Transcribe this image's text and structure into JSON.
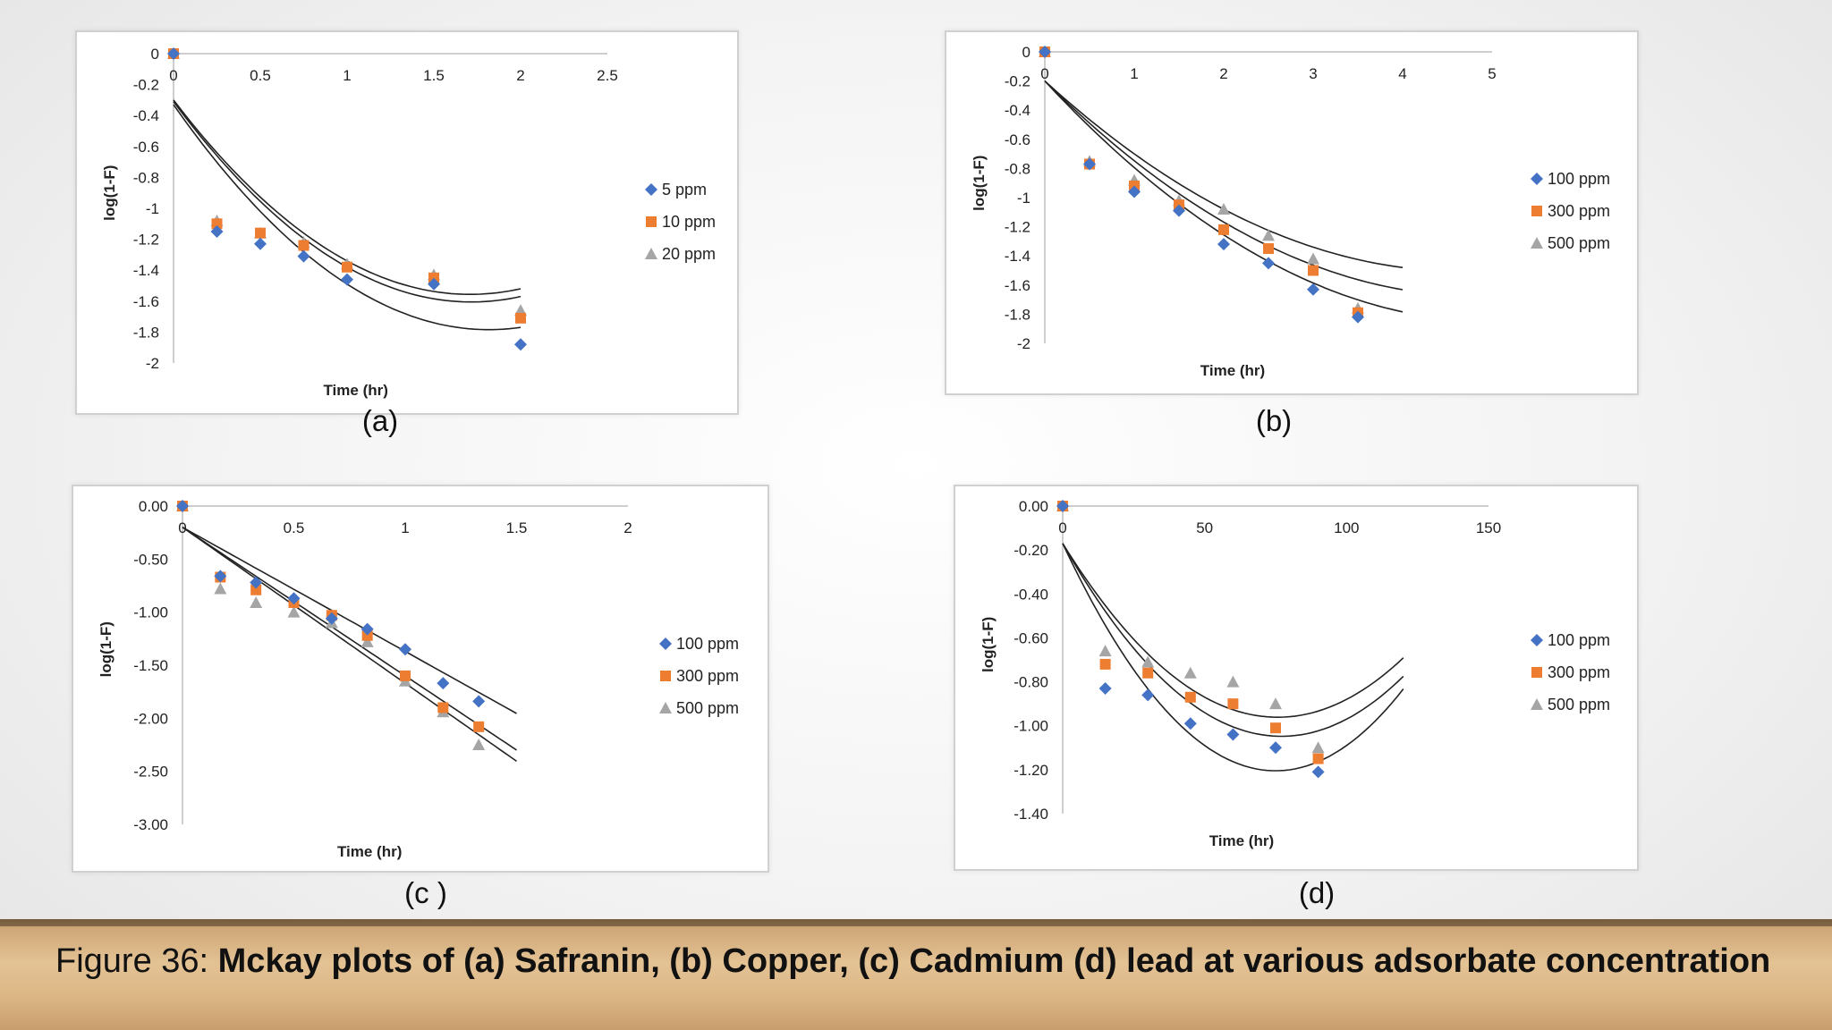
{
  "caption": {
    "prefix": "Figure 36: ",
    "bold": "Mckay plots of (a) Safranin, (b) Copper, (c) Cadmium (d)  lead at various adsorbate concentration"
  },
  "colors": {
    "diamond": "#4472C4",
    "square": "#ED7D31",
    "triangle": "#A5A5A5",
    "fit": "#222222"
  },
  "chart_data": [
    {
      "id": "a",
      "type": "scatter",
      "panel_label": "(a)",
      "xlabel": "Time (hr)",
      "ylabel": "log(1-F)",
      "xlim": [
        0,
        2.5
      ],
      "ylim": [
        -2,
        0
      ],
      "x_ticks": [
        "0",
        "0.5",
        "1",
        "1.5",
        "2",
        "2.5"
      ],
      "x_tick_values": [
        0,
        0.5,
        1,
        1.5,
        2,
        2.5
      ],
      "y_ticks": [
        "0",
        "-0.2",
        "-0.4",
        "-0.6",
        "-0.8",
        "-1",
        "-1.2",
        "-1.4",
        "-1.6",
        "-1.8",
        "-2"
      ],
      "y_tick_values": [
        0,
        -0.2,
        -0.4,
        -0.6,
        -0.8,
        -1,
        -1.2,
        -1.4,
        -1.6,
        -1.8,
        -2
      ],
      "legend": "right",
      "series": [
        {
          "name": "5 ppm",
          "marker": "diamond",
          "x": [
            0,
            0.25,
            0.5,
            0.75,
            1,
            1.5,
            2
          ],
          "y": [
            0,
            -1.15,
            -1.23,
            -1.31,
            -1.46,
            -1.49,
            -1.88
          ]
        },
        {
          "name": "10 ppm",
          "marker": "square",
          "x": [
            0,
            0.25,
            0.5,
            0.75,
            1,
            1.5,
            2
          ],
          "y": [
            0,
            -1.1,
            -1.16,
            -1.24,
            -1.38,
            -1.45,
            -1.71
          ]
        },
        {
          "name": "20 ppm",
          "marker": "triangle",
          "x": [
            0,
            0.25,
            0.5,
            0.75,
            1,
            1.5,
            2
          ],
          "y": [
            0,
            -1.08,
            -1.16,
            -1.22,
            -1.36,
            -1.43,
            -1.66
          ]
        }
      ],
      "fits": [
        {
          "x0": 0,
          "x1": 2,
          "coef": [
            -0.33,
            -1.6,
            0.44
          ]
        },
        {
          "x0": 0,
          "x1": 2,
          "coef": [
            -0.31,
            -1.51,
            0.44
          ]
        },
        {
          "x0": 0,
          "x1": 2,
          "coef": [
            -0.3,
            -1.47,
            0.43
          ]
        }
      ]
    },
    {
      "id": "b",
      "type": "scatter",
      "panel_label": "(b)",
      "xlabel": "Time (hr)",
      "ylabel": "log(1-F)",
      "xlim": [
        0,
        5
      ],
      "ylim": [
        -2,
        0
      ],
      "x_ticks": [
        "0",
        "1",
        "2",
        "3",
        "4",
        "5"
      ],
      "x_tick_values": [
        0,
        1,
        2,
        3,
        4,
        5
      ],
      "y_ticks": [
        "0",
        "-0.2",
        "-0.4",
        "-0.6",
        "-0.8",
        "-1",
        "-1.2",
        "-1.4",
        "-1.6",
        "-1.8",
        "-2"
      ],
      "y_tick_values": [
        0,
        -0.2,
        -0.4,
        -0.6,
        -0.8,
        -1,
        -1.2,
        -1.4,
        -1.6,
        -1.8,
        -2
      ],
      "legend": "right",
      "series": [
        {
          "name": "100 ppm",
          "marker": "diamond",
          "x": [
            0,
            0.5,
            1,
            1.5,
            2,
            2.5,
            3,
            3.5
          ],
          "y": [
            0,
            -0.77,
            -0.96,
            -1.09,
            -1.32,
            -1.45,
            -1.63,
            -1.82
          ]
        },
        {
          "name": "300 ppm",
          "marker": "square",
          "x": [
            0,
            0.5,
            1,
            1.5,
            2,
            2.5,
            3,
            3.5
          ],
          "y": [
            0,
            -0.77,
            -0.92,
            -1.05,
            -1.22,
            -1.35,
            -1.5,
            -1.79
          ]
        },
        {
          "name": "500 ppm",
          "marker": "triangle",
          "x": [
            0,
            0.5,
            1,
            1.5,
            2,
            2.5,
            3,
            3.5
          ],
          "y": [
            0,
            -0.75,
            -0.88,
            -1.02,
            -1.08,
            -1.26,
            -1.42,
            -1.76
          ]
        }
      ],
      "fits": [
        {
          "x0": 0,
          "x1": 4,
          "coef": [
            -0.2,
            -0.66,
            0.066
          ]
        },
        {
          "x0": 0,
          "x1": 4,
          "coef": [
            -0.2,
            -0.61,
            0.063
          ]
        },
        {
          "x0": 0,
          "x1": 4,
          "coef": [
            -0.2,
            -0.56,
            0.06
          ]
        }
      ]
    },
    {
      "id": "c",
      "type": "scatter",
      "panel_label": "(c )",
      "xlabel": "Time (hr)",
      "ylabel": "log(1-F)",
      "xlim": [
        0,
        2
      ],
      "ylim": [
        -3,
        0
      ],
      "x_ticks": [
        "0",
        "0.5",
        "1",
        "1.5",
        "2"
      ],
      "x_tick_values": [
        0,
        0.5,
        1,
        1.5,
        2
      ],
      "y_ticks": [
        "0.00",
        "-0.50",
        "-1.00",
        "-1.50",
        "-2.00",
        "-2.50",
        "-3.00"
      ],
      "y_tick_values": [
        0,
        -0.5,
        -1,
        -1.5,
        -2,
        -2.5,
        -3
      ],
      "legend": "right",
      "series": [
        {
          "name": "100 ppm",
          "marker": "diamond",
          "x": [
            0,
            0.17,
            0.33,
            0.5,
            0.67,
            0.83,
            1,
            1.17,
            1.33
          ],
          "y": [
            0,
            -0.66,
            -0.72,
            -0.87,
            -1.06,
            -1.16,
            -1.35,
            -1.67,
            -1.84
          ]
        },
        {
          "name": "300 ppm",
          "marker": "square",
          "x": [
            0,
            0.17,
            0.33,
            0.5,
            0.67,
            0.83,
            1,
            1.17,
            1.33
          ],
          "y": [
            0,
            -0.67,
            -0.79,
            -0.91,
            -1.03,
            -1.22,
            -1.6,
            -1.9,
            -2.08
          ]
        },
        {
          "name": "500 ppm",
          "marker": "triangle",
          "x": [
            0,
            0.17,
            0.33,
            0.5,
            0.67,
            0.83,
            1,
            1.17,
            1.33
          ],
          "y": [
            0,
            -0.78,
            -0.91,
            -1.0,
            -1.1,
            -1.28,
            -1.65,
            -1.94,
            -2.25
          ]
        }
      ],
      "fits": [
        {
          "x0": 0,
          "x1": 1.5,
          "coef": [
            -0.2,
            -1.17,
            0
          ]
        },
        {
          "x0": 0,
          "x1": 1.5,
          "coef": [
            -0.2,
            -1.4,
            0
          ]
        },
        {
          "x0": 0,
          "x1": 1.5,
          "coef": [
            -0.2,
            -1.47,
            0
          ]
        }
      ]
    },
    {
      "id": "d",
      "type": "scatter",
      "panel_label": "(d)",
      "xlabel": "Time (hr)",
      "ylabel": "log(1-F)",
      "xlim": [
        0,
        150
      ],
      "ylim": [
        -1.4,
        0
      ],
      "x_ticks": [
        "0",
        "50",
        "100",
        "150"
      ],
      "x_tick_values": [
        0,
        50,
        100,
        150
      ],
      "y_ticks": [
        "0.00",
        "-0.20",
        "-0.40",
        "-0.60",
        "-0.80",
        "-1.00",
        "-1.20",
        "-1.40"
      ],
      "y_tick_values": [
        0,
        -0.2,
        -0.4,
        -0.6,
        -0.8,
        -1,
        -1.2,
        -1.4
      ],
      "legend": "right",
      "series": [
        {
          "name": "100 ppm",
          "marker": "diamond",
          "x": [
            0,
            15,
            30,
            45,
            60,
            75,
            90
          ],
          "y": [
            0,
            -0.83,
            -0.86,
            -0.99,
            -1.04,
            -1.1,
            -1.21
          ]
        },
        {
          "name": "300 ppm",
          "marker": "square",
          "x": [
            0,
            15,
            30,
            45,
            60,
            75,
            90
          ],
          "y": [
            0,
            -0.72,
            -0.76,
            -0.87,
            -0.9,
            -1.01,
            -1.15
          ]
        },
        {
          "name": "500 ppm",
          "marker": "triangle",
          "x": [
            0,
            15,
            30,
            45,
            60,
            75,
            90
          ],
          "y": [
            0,
            -0.66,
            -0.71,
            -0.76,
            -0.8,
            -0.9,
            -1.1
          ]
        }
      ],
      "fits": [
        {
          "x0": 0,
          "x1": 120,
          "coef": [
            -0.17,
            -0.0276,
            0.000184
          ]
        },
        {
          "x0": 0,
          "x1": 120,
          "coef": [
            -0.17,
            -0.0228,
            0.000148
          ]
        },
        {
          "x0": 0,
          "x1": 120,
          "coef": [
            -0.17,
            -0.0209,
            0.000138
          ]
        }
      ]
    }
  ]
}
